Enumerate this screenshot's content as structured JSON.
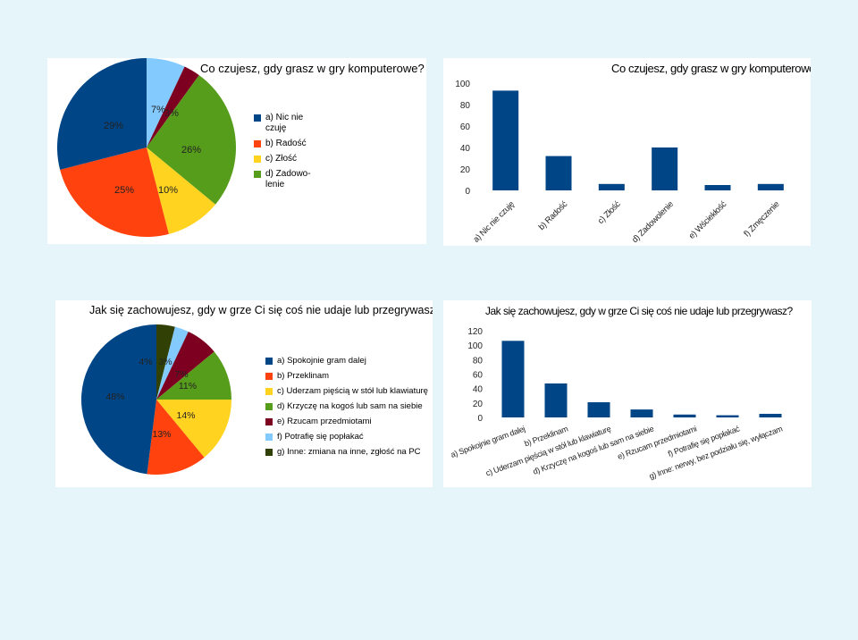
{
  "chart_data": [
    {
      "type": "pie",
      "title": "Co czujesz, gdy grasz w gry komputerowe?",
      "categories": [
        "a) Nic nie czuję",
        "b) Radość",
        "c) Złość",
        "d) Zadowolenie",
        "e) Wściekłość",
        "f) Zmęczenie"
      ],
      "values": [
        29,
        25,
        10,
        26,
        3,
        7
      ],
      "value_labels": [
        "29%",
        "25%",
        "10%",
        "26%",
        "3%",
        "7%"
      ],
      "colors": [
        "#004586",
        "#ff420e",
        "#ffd320",
        "#579d1c",
        "#7e0021",
        "#83caff"
      ],
      "legend": [
        "a) Nic nie\nczuję",
        "b) Radość",
        "c) Złość",
        "d) Zadowo-\nlenie"
      ],
      "legend_position": "right"
    },
    {
      "type": "bar",
      "title": "Co czujesz, gdy grasz w gry komputerowe?",
      "categories": [
        "a) Nic nie czuję",
        "b) Radość",
        "c) Złość",
        "d) Zadowolenie",
        "e) Wściekłość",
        "f) Zmęczenie"
      ],
      "values": [
        93,
        32,
        6,
        40,
        5,
        6
      ],
      "ylim": [
        0,
        100
      ],
      "yticks": [
        "0",
        "20",
        "40",
        "60",
        "80",
        "100"
      ],
      "color": "#004586"
    },
    {
      "type": "pie",
      "title": "Jak się zachowujesz, gdy w grze Ci się coś nie udaje lub przegrywasz?",
      "categories": [
        "a) Spokojnie gram dalej",
        "b) Przeklinam",
        "c) Uderzam pięścią w stół lub klawiaturę",
        "d) Krzyczę na kogoś lub sam na siebie",
        "e) Rzucam przedmiotami",
        "f) Potrafię się popłakać",
        "g) Inne: zmiana na inne, zgłość na PC"
      ],
      "values": [
        48,
        13,
        14,
        11,
        7,
        3,
        4
      ],
      "value_labels": [
        "48%",
        "13%",
        "14%",
        "11%",
        "7%",
        "3%",
        "4%"
      ],
      "colors": [
        "#004586",
        "#ff420e",
        "#ffd320",
        "#579d1c",
        "#7e0021",
        "#83caff",
        "#314004"
      ],
      "legend": [
        "a) Spokojnie gram dalej",
        "b) Przeklinam",
        "c) Uderzam pięścią w stół lub klawiaturę",
        "d) Krzyczę na kogoś lub sam na siebie",
        "e) Rzucam przedmiotami",
        "f) Potrafię się popłakać",
        "g) Inne: zmiana na inne, zgłość na PC"
      ],
      "legend_position": "right"
    },
    {
      "type": "bar",
      "title": "Jak się zachowujesz, gdy w grze Ci się coś nie udaje lub przegrywasz?",
      "categories": [
        "a) Spokojnie gram dalej",
        "b) Przeklinam",
        "c) Uderzam pięścią w stół lub klawiaturę",
        "d) Krzyczę na kogoś lub sam na siebie",
        "e) Rzucam przedmiotami",
        "f) Potrafię się popłakać",
        "g) Inne: nerwy, bez podziału się, wyłączam"
      ],
      "values": [
        106,
        47,
        21,
        11,
        4,
        3,
        5
      ],
      "ylim": [
        0,
        120
      ],
      "yticks": [
        "0",
        "20",
        "40",
        "60",
        "80",
        "100",
        "120"
      ],
      "color": "#004586"
    }
  ]
}
